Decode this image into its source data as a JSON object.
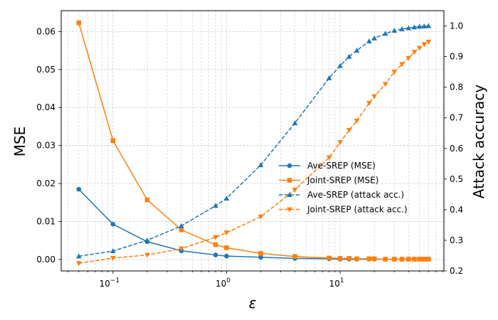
{
  "chart_data": {
    "type": "line",
    "xscale": "log",
    "x": [
      0.05,
      0.1,
      0.2,
      0.4,
      0.8,
      1.0,
      2.0,
      4.0,
      8.0,
      10.0,
      12.0,
      14.0,
      18.0,
      20.0,
      25.0,
      30.0,
      35.0,
      40.0,
      45.0,
      50.0,
      55.0,
      60.0
    ],
    "xlabel": "ε",
    "ylabel_left": "MSE",
    "ylabel_right": "Attack accuracy",
    "ylim_left": [
      -0.003,
      0.0655
    ],
    "ylim_right": [
      0.2,
      1.05
    ],
    "xlim": [
      0.035,
      82
    ],
    "grid": true,
    "x_ticks": [
      {
        "value": 0.1,
        "base": "10",
        "exp": "−1"
      },
      {
        "value": 1,
        "base": "10",
        "exp": "0"
      },
      {
        "value": 10,
        "base": "10",
        "exp": "1"
      }
    ],
    "y_ticks_left": [
      {
        "value": 0.0,
        "label": "0.00"
      },
      {
        "value": 0.01,
        "label": "0.01"
      },
      {
        "value": 0.02,
        "label": "0.02"
      },
      {
        "value": 0.03,
        "label": "0.03"
      },
      {
        "value": 0.04,
        "label": "0.04"
      },
      {
        "value": 0.05,
        "label": "0.05"
      },
      {
        "value": 0.06,
        "label": "0.06"
      }
    ],
    "y_ticks_right": [
      {
        "value": 0.2,
        "label": "0.2"
      },
      {
        "value": 0.3,
        "label": "0.3"
      },
      {
        "value": 0.4,
        "label": "0.4"
      },
      {
        "value": 0.5,
        "label": "0.5"
      },
      {
        "value": 0.6,
        "label": "0.6"
      },
      {
        "value": 0.7,
        "label": "0.7"
      },
      {
        "value": 0.8,
        "label": "0.8"
      },
      {
        "value": 0.9,
        "label": "0.9"
      },
      {
        "value": 1.0,
        "label": "1.0"
      }
    ],
    "series": [
      {
        "name": "Ave-SREP (MSE)",
        "axis": "left",
        "color": "#1f77b4",
        "dash": false,
        "marker": "circle",
        "values": [
          0.0185,
          0.0093,
          0.0047,
          0.0023,
          0.0012,
          0.0009,
          0.0006,
          0.0003,
          0.0002,
          0.0001,
          0.0001,
          0.0001,
          0.0001,
          0.0001,
          0.0001,
          0.0001,
          0.0001,
          0.0001,
          0.0001,
          0.0001,
          0.0001,
          0.0001
        ]
      },
      {
        "name": "Joint-SREP (MSE)",
        "axis": "left",
        "color": "#ff7f0e",
        "dash": false,
        "marker": "square",
        "values": [
          0.0623,
          0.0313,
          0.0157,
          0.0078,
          0.0039,
          0.0031,
          0.0016,
          0.0008,
          0.0004,
          0.0003,
          0.0003,
          0.0002,
          0.0002,
          0.0002,
          0.0001,
          0.0001,
          0.0001,
          0.0001,
          0.0001,
          0.0001,
          0.0001,
          0.0001
        ]
      },
      {
        "name": "Ave-SREP (attack acc.)",
        "axis": "right",
        "color": "#1f77b4",
        "dash": true,
        "marker": "triangle-up",
        "values": [
          0.248,
          0.265,
          0.3,
          0.347,
          0.413,
          0.437,
          0.546,
          0.683,
          0.83,
          0.87,
          0.9,
          0.92,
          0.95,
          0.96,
          0.975,
          0.985,
          0.99,
          0.993,
          0.996,
          0.998,
          0.999,
          1.0
        ]
      },
      {
        "name": "Joint-SREP (attack acc.)",
        "axis": "right",
        "color": "#ff7f0e",
        "dash": true,
        "marker": "triangle-down",
        "values": [
          0.225,
          0.242,
          0.252,
          0.273,
          0.31,
          0.325,
          0.377,
          0.465,
          0.57,
          0.62,
          0.66,
          0.69,
          0.748,
          0.77,
          0.81,
          0.85,
          0.875,
          0.895,
          0.915,
          0.928,
          0.94,
          0.948
        ]
      }
    ]
  }
}
